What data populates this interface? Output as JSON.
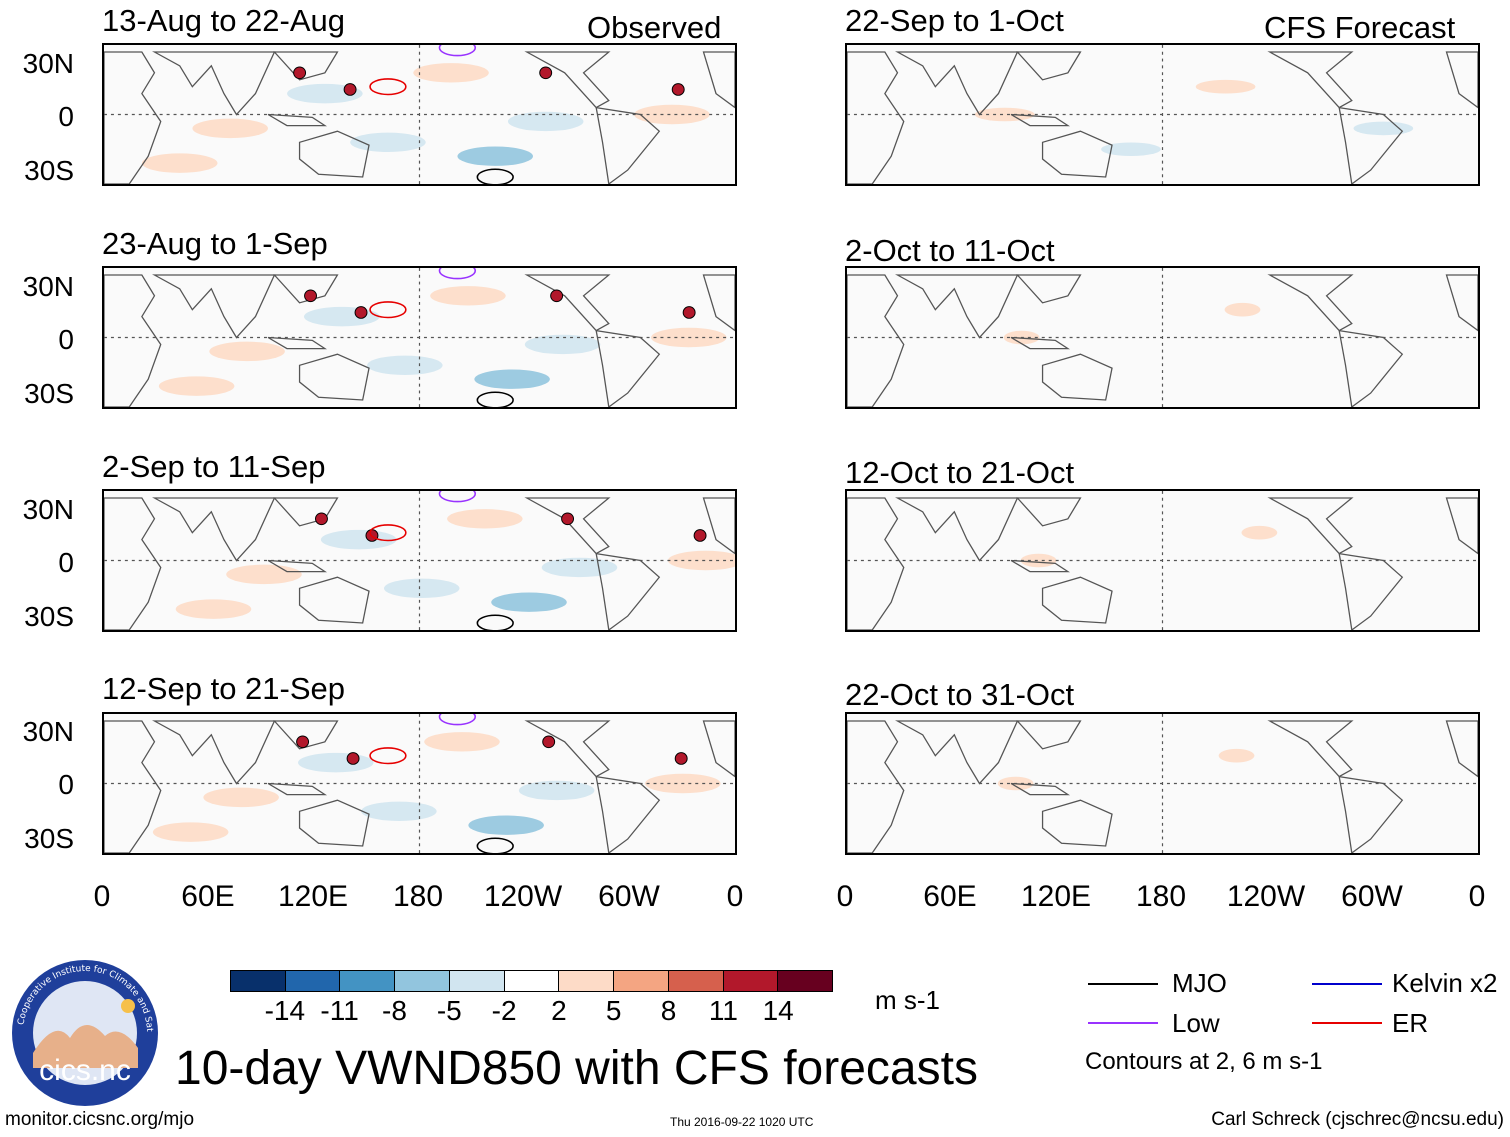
{
  "header": {
    "observed_label": "Observed",
    "forecast_label": "CFS Forecast"
  },
  "panels_observed": [
    {
      "title": "13-Aug to 22-Aug"
    },
    {
      "title": "23-Aug to 1-Sep"
    },
    {
      "title": "2-Sep to 11-Sep"
    },
    {
      "title": "12-Sep to 21-Sep"
    }
  ],
  "panels_forecast": [
    {
      "title": "22-Sep to 1-Oct"
    },
    {
      "title": "2-Oct to 11-Oct"
    },
    {
      "title": "12-Oct to 21-Oct"
    },
    {
      "title": "22-Oct to 31-Oct"
    }
  ],
  "lat_labels": [
    "30N",
    "0",
    "30S"
  ],
  "lon_labels": [
    "0",
    "60E",
    "120E",
    "180",
    "120W",
    "60W",
    "0"
  ],
  "colorbar": {
    "colors": [
      "#08306b",
      "#2166ac",
      "#4393c3",
      "#92c5de",
      "#d1e5f0",
      "#ffffff",
      "#fddbc7",
      "#f4a582",
      "#d6604d",
      "#b2182b",
      "#67001f"
    ],
    "ticks": [
      "-14",
      "-11",
      "-8",
      "-5",
      "-2",
      "2",
      "5",
      "8",
      "11",
      "14"
    ],
    "units": "m s-1"
  },
  "legend": {
    "items": [
      {
        "label": "MJO",
        "color": "#000000"
      },
      {
        "label": "Kelvin x2",
        "color": "#0000cc"
      },
      {
        "label": "Low",
        "color": "#9933ff"
      },
      {
        "label": "ER",
        "color": "#e60000"
      }
    ],
    "contours_note": "Contours at 2, 6 m s-1"
  },
  "logo": {
    "text": "cics.nc",
    "ring_text": "Cooperative Institute for Climate and Satellites"
  },
  "main_title": "10-day VWND850 with CFS forecasts",
  "footer": {
    "left": "monitor.cicsnc.org/mjo",
    "center": "Thu 2016-09-22 1020 UTC",
    "right": "Carl Schreck (cjschrec@ncsu.edu)"
  }
}
